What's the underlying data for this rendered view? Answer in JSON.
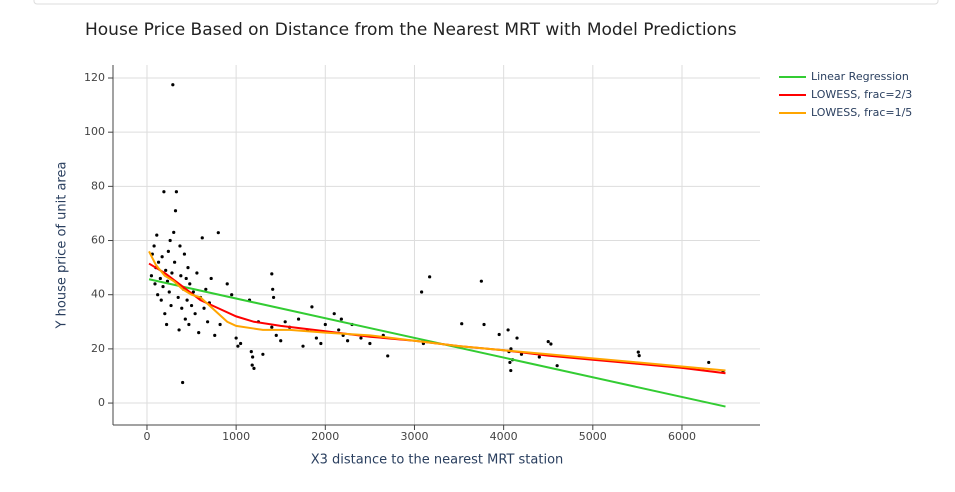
{
  "chart_data": {
    "type": "scatter",
    "title": "House Price Based on Distance from the Nearest MRT with Model Predictions",
    "x_label": "X3 distance to the nearest MRT station",
    "y_label": "Y house price of unit area",
    "xlim": [
      -381,
      6875
    ],
    "ylim": [
      -8.1,
      124.8
    ],
    "xticks": [
      0,
      1000,
      2000,
      3000,
      4000,
      5000,
      6000
    ],
    "yticks": [
      0,
      20,
      40,
      60,
      80,
      100,
      120
    ],
    "grid": true,
    "legend": "top-right",
    "series": [
      {
        "type": "scatter",
        "color": "#000000",
        "x": [
          50,
          60,
          80,
          90,
          100,
          110,
          120,
          130,
          150,
          160,
          170,
          180,
          190,
          200,
          210,
          220,
          230,
          240,
          250,
          260,
          270,
          280,
          290,
          300,
          310,
          320,
          330,
          340,
          350,
          360,
          370,
          380,
          390,
          400,
          410,
          420,
          430,
          440,
          450,
          460,
          470,
          480,
          500,
          520,
          540,
          560,
          580,
          600,
          620,
          640,
          660,
          680,
          700,
          720,
          760,
          800,
          820,
          900,
          950,
          1000,
          1020,
          1050,
          1150,
          1170,
          1180,
          1200,
          1185,
          1250,
          1300,
          1400,
          1400,
          1410,
          1420,
          1450,
          1500,
          1550,
          1600,
          1700,
          1750,
          1800,
          1850,
          1900,
          1950,
          2000,
          2100,
          2150,
          2180,
          2200,
          2250,
          2300,
          2400,
          2500,
          2700,
          2650,
          3080,
          3100,
          3170,
          3530,
          3750,
          3780,
          3950,
          4050,
          4060,
          4070,
          4080,
          4082,
          4100,
          4150,
          4200,
          4400,
          4500,
          4530,
          4600,
          5510,
          5520,
          6300,
          6460
        ],
        "values": [
          47,
          55,
          58,
          44,
          50,
          62,
          40,
          52,
          46,
          38,
          54,
          43,
          78,
          33,
          49,
          29,
          45,
          56,
          41,
          60,
          36,
          48,
          117.5,
          63,
          52,
          71,
          78,
          44,
          39,
          27,
          58,
          47,
          35,
          7.6,
          42,
          55,
          31,
          46,
          38,
          50,
          29,
          44,
          36,
          41,
          33,
          48,
          26,
          39,
          61,
          35,
          42,
          30,
          37,
          46,
          25,
          62.9,
          29,
          44,
          40,
          24,
          21,
          22,
          38,
          19,
          14,
          12.8,
          17,
          30,
          18,
          28,
          47.7,
          42,
          39,
          25,
          23,
          30,
          28,
          31,
          21,
          27,
          35.5,
          24,
          22,
          29,
          33,
          27,
          31,
          25,
          23,
          29,
          24,
          22,
          17.4,
          25,
          41,
          22,
          46.6,
          29.3,
          45,
          29,
          25.3,
          27,
          19,
          15,
          12,
          20,
          16,
          24,
          18,
          17,
          22.7,
          21.8,
          13.8,
          18.8,
          17.5,
          15,
          11.5
        ]
      },
      {
        "type": "line",
        "name": "Linear Regression",
        "color": "#33cc33",
        "x": [
          23,
          6488
        ],
        "values": [
          45.7,
          -1.3
        ]
      },
      {
        "type": "line",
        "name": "LOWESS, frac=2/3",
        "color": "#ff0000",
        "x": [
          23,
          200,
          400,
          600,
          800,
          1000,
          1200,
          1500,
          2000,
          2500,
          3000,
          3500,
          4000,
          4500,
          5000,
          5500,
          6000,
          6488
        ],
        "values": [
          51.5,
          48,
          43,
          38,
          35,
          32,
          30,
          28.5,
          26.5,
          24.5,
          23,
          21,
          19.5,
          17.5,
          16,
          14.5,
          13,
          11
        ]
      },
      {
        "type": "line",
        "name": "LOWESS, frac=1/5",
        "color": "#ffa500",
        "x": [
          23,
          100,
          200,
          300,
          400,
          500,
          600,
          700,
          800,
          900,
          1000,
          1200,
          1300,
          1600,
          2000,
          2500,
          3000,
          3500,
          4000,
          4500,
          5000,
          5500,
          6000,
          6488
        ],
        "values": [
          56,
          51,
          47,
          45,
          42,
          40,
          39,
          36,
          33,
          30,
          28.5,
          27.5,
          27,
          27,
          26,
          25,
          23,
          21,
          19.5,
          18,
          16.5,
          15,
          13.5,
          12
        ]
      }
    ]
  }
}
